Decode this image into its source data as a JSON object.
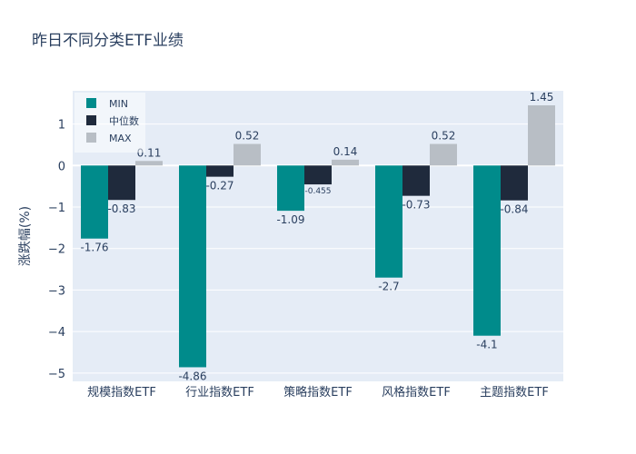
{
  "title": "昨日不同分类ETF业绩",
  "colors": {
    "background": "#ffffff",
    "plot_background": "#e5ecf6",
    "grid": "#ffffff",
    "text": "#2a3f5f"
  },
  "chart_data": {
    "type": "bar",
    "title": "昨日不同分类ETF业绩",
    "xlabel": "",
    "ylabel": "涨跌幅(%)",
    "categories": [
      "规模指数ETF",
      "行业指数ETF",
      "策略指数ETF",
      "风格指数ETF",
      "主题指数ETF"
    ],
    "series": [
      {
        "name": "MIN",
        "color": "#008b8b",
        "values": [
          -1.76,
          -4.86,
          -1.09,
          -2.7,
          -4.1
        ],
        "labels": [
          "-1.76",
          "-4.86",
          "-1.09",
          "-2.7",
          "-4.1"
        ]
      },
      {
        "name": "中位数",
        "color": "#1f2a3c",
        "values": [
          -0.83,
          -0.27,
          -0.455,
          -0.73,
          -0.84
        ],
        "labels": [
          "-0.83",
          "-0.27",
          "-0.455",
          "-0.73",
          "-0.84"
        ]
      },
      {
        "name": "MAX",
        "color": "#b8bec5",
        "values": [
          0.11,
          0.52,
          0.14,
          0.52,
          1.45
        ],
        "labels": [
          "0.11",
          "0.52",
          "0.14",
          "0.52",
          "1.45"
        ]
      }
    ],
    "ylim": [
      -5.2,
      1.8
    ],
    "yticks": [
      1,
      0,
      -1,
      -2,
      -3,
      -4,
      -5
    ],
    "ytick_labels": [
      "1",
      "0",
      "−1",
      "−2",
      "−3",
      "−4",
      "−5"
    ],
    "grid": true,
    "legend": "top-left"
  }
}
